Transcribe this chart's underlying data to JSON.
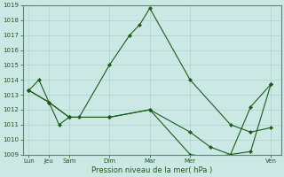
{
  "title": "",
  "xlabel": "Pression niveau de la mer( hPa )",
  "ylabel": "",
  "bg_color": "#cce8e4",
  "line_color": "#1a5c1a",
  "grid_color": "#aad4cc",
  "ylim": [
    1009,
    1019
  ],
  "yticks": [
    1009,
    1010,
    1011,
    1012,
    1013,
    1014,
    1015,
    1016,
    1017,
    1018,
    1019
  ],
  "xtick_labels": [
    "Lun",
    "Jeu",
    "Sam",
    "Dim",
    "Mar",
    "Mer",
    "Ven"
  ],
  "xtick_positions": [
    0,
    1,
    2,
    4,
    6,
    8,
    12
  ],
  "xlim": [
    -0.3,
    12.5
  ],
  "series": [
    {
      "x": [
        0.0,
        0.5,
        1.0,
        1.5,
        2.0,
        2.5,
        4.0,
        5.0,
        5.5,
        6.0,
        8.0,
        10.0,
        11.0,
        12.0
      ],
      "y": [
        1013.3,
        1014.0,
        1012.5,
        1011.0,
        1011.5,
        1011.5,
        1015.0,
        1017.0,
        1017.7,
        1018.8,
        1014.0,
        1011.0,
        1010.5,
        1010.8
      ]
    },
    {
      "x": [
        0.0,
        1.0,
        2.0,
        4.0,
        6.0,
        8.0,
        9.0,
        10.0,
        11.0,
        12.0
      ],
      "y": [
        1013.3,
        1012.5,
        1011.5,
        1011.5,
        1012.0,
        1009.0,
        1008.8,
        1009.0,
        1012.2,
        1013.7
      ]
    },
    {
      "x": [
        0.0,
        1.0,
        2.0,
        4.0,
        6.0,
        8.0,
        9.0,
        10.0,
        11.0,
        12.0
      ],
      "y": [
        1013.3,
        1012.5,
        1011.5,
        1011.5,
        1012.0,
        1010.5,
        1009.5,
        1009.0,
        1009.2,
        1013.7
      ]
    }
  ]
}
